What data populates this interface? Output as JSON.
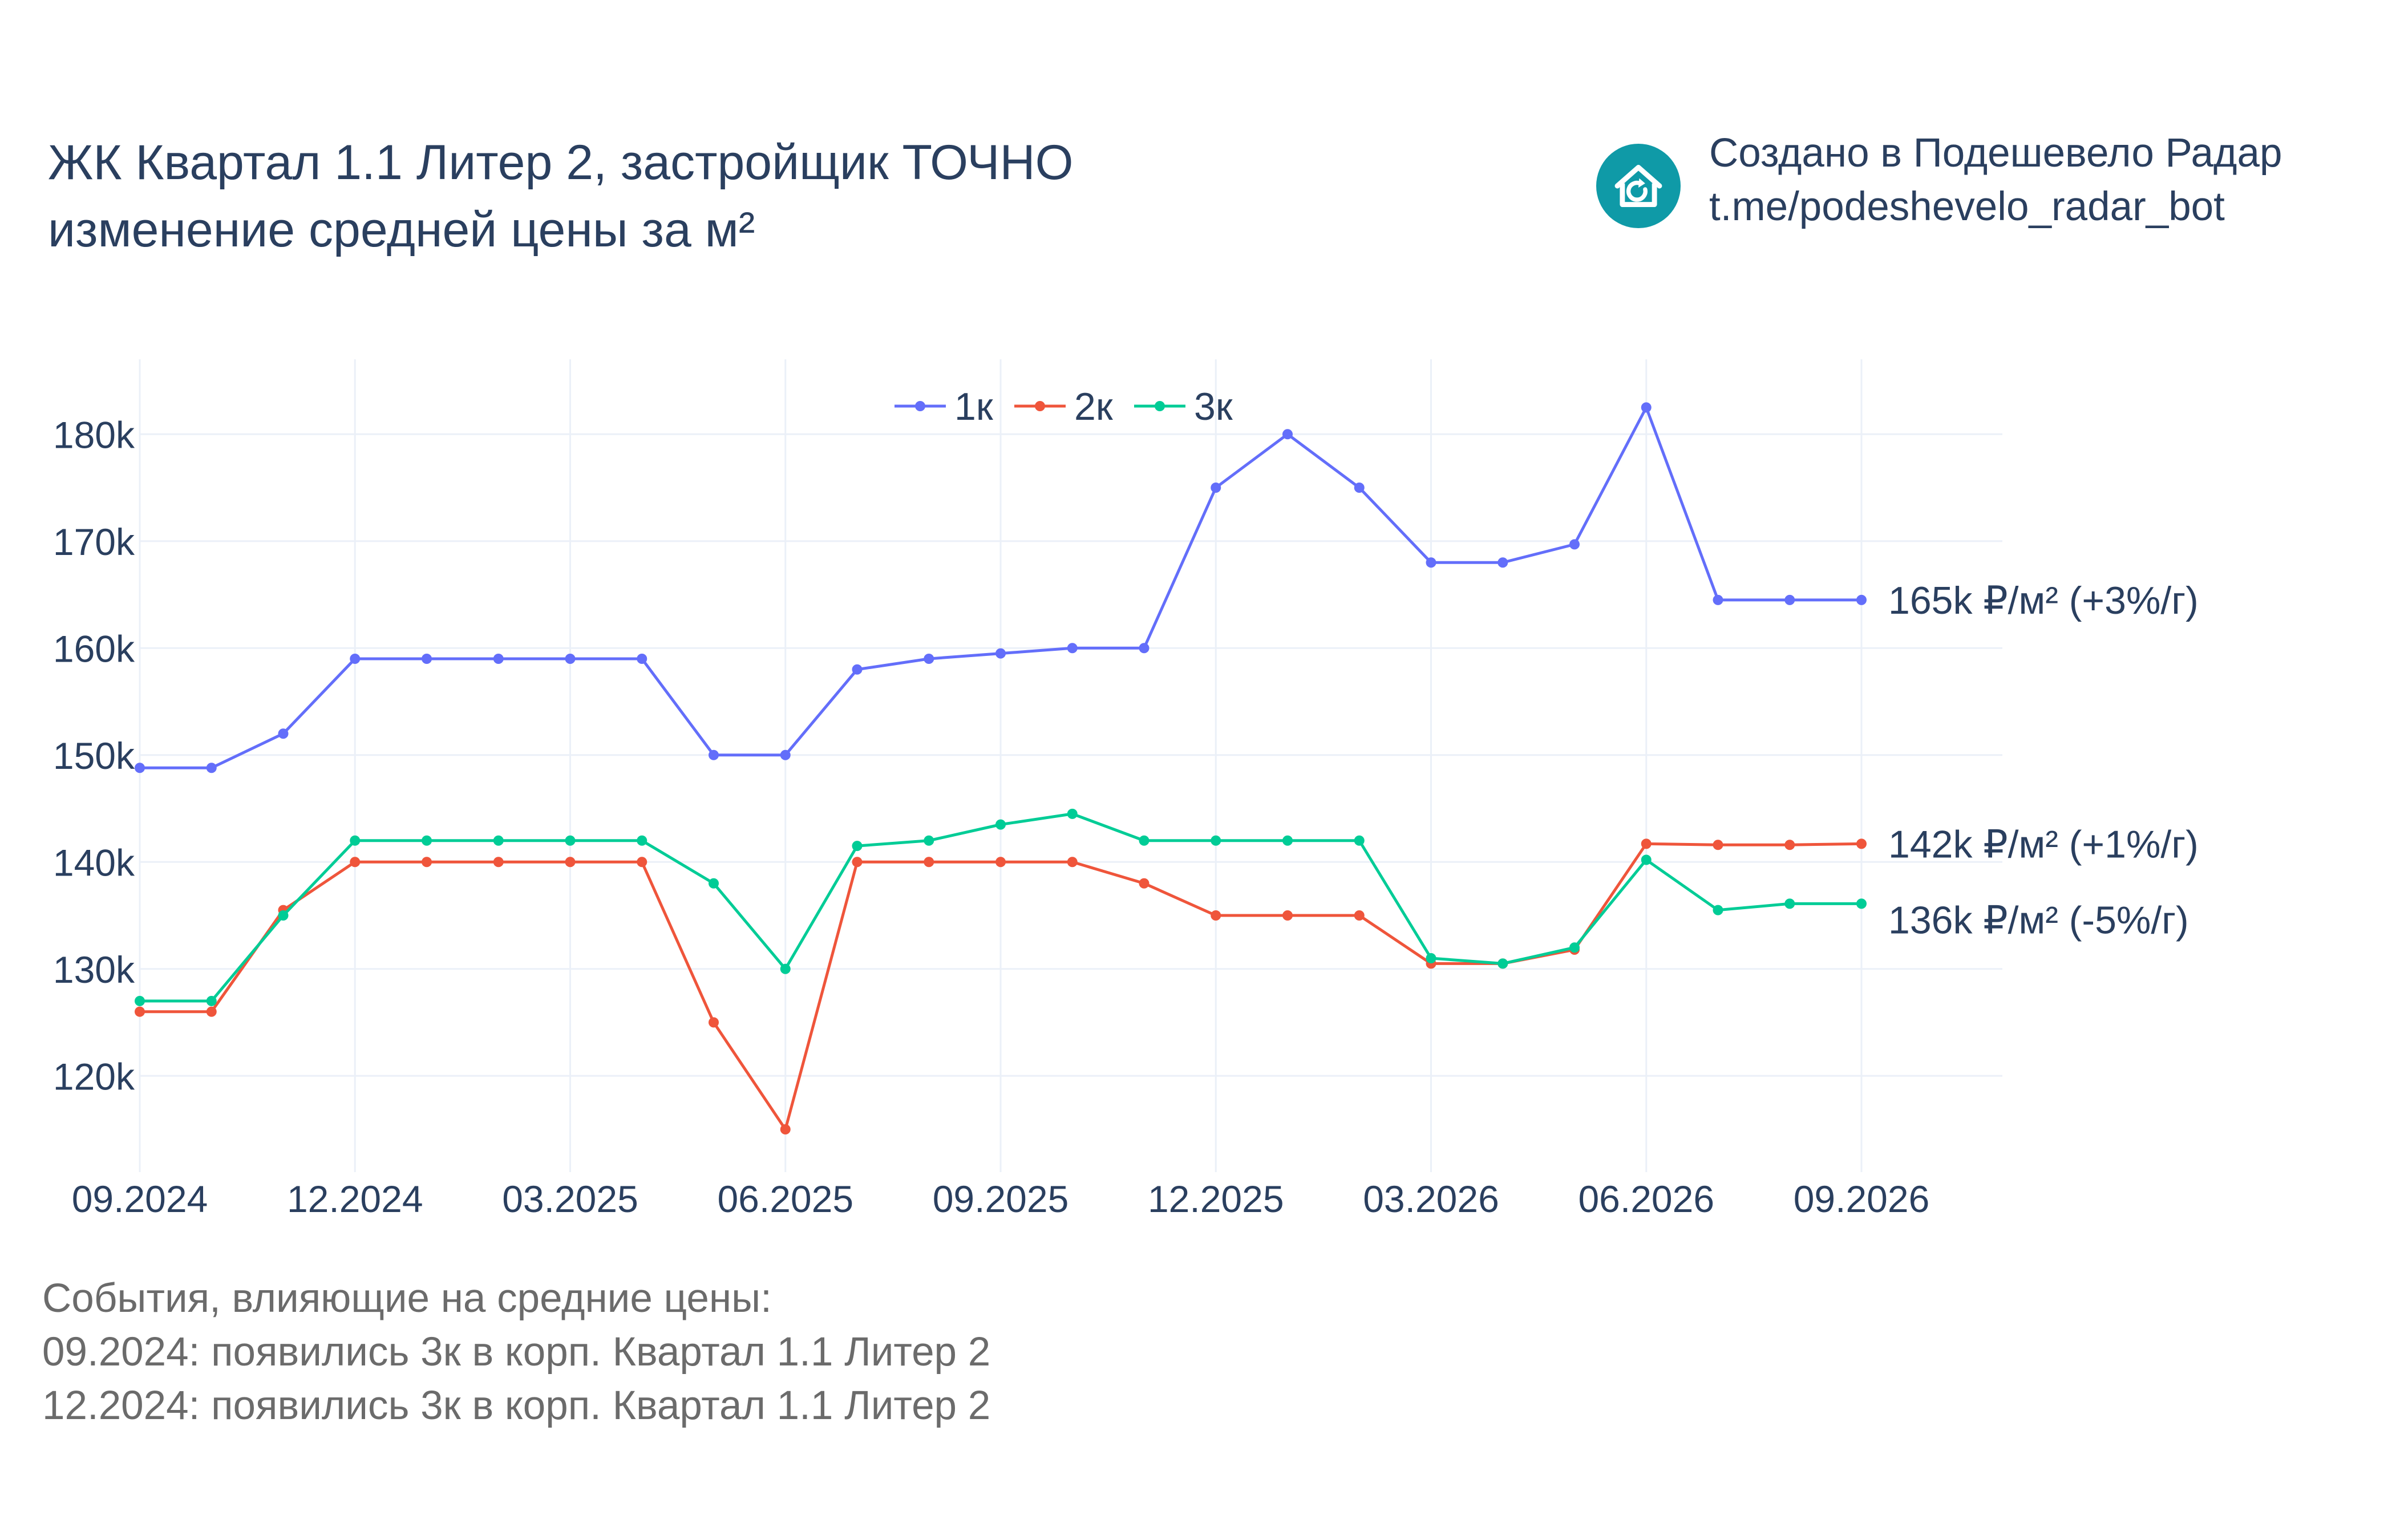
{
  "header": {
    "title_line1": "ЖК Квартал 1.1 Литер 2, застройщик ТОЧНО",
    "title_line2": "изменение средней цены за м²",
    "credit_line1": "Создано в Подешевело Радар",
    "credit_line2": "t.me/podeshevelo_radar_bot",
    "logo_icon": "house-refresh-icon"
  },
  "chart_data": {
    "type": "line",
    "x": [
      "09.2024",
      "10.2024",
      "11.2024",
      "12.2024",
      "01.2025",
      "02.2025",
      "03.2025",
      "04.2025",
      "05.2025",
      "06.2025",
      "07.2025",
      "08.2025",
      "09.2025",
      "10.2025",
      "11.2025",
      "12.2025",
      "01.2026",
      "02.2026",
      "03.2026",
      "04.2026",
      "05.2026",
      "06.2026",
      "07.2026",
      "08.2026",
      "09.2026"
    ],
    "x_ticks": [
      "09.2024",
      "12.2024",
      "03.2025",
      "06.2025",
      "09.2025",
      "12.2025",
      "03.2026",
      "06.2026",
      "09.2026"
    ],
    "y_ticks": [
      "120k",
      "130k",
      "140k",
      "150k",
      "160k",
      "170k",
      "180k"
    ],
    "ylim": [
      111000,
      187000
    ],
    "grid": true,
    "legend_position": "top-center",
    "series": [
      {
        "name": "1к",
        "color": "#636efa",
        "values": [
          148800,
          148800,
          152000,
          159000,
          159000,
          159000,
          159000,
          159000,
          150000,
          150000,
          158000,
          159000,
          159500,
          160000,
          160000,
          175000,
          180000,
          175000,
          168000,
          168000,
          169700,
          182500,
          164500,
          164500,
          164500
        ],
        "end_label": "165k ₽/м² (+3%/г)"
      },
      {
        "name": "2к",
        "color": "#ef553b",
        "values": [
          126000,
          126000,
          135500,
          140000,
          140000,
          140000,
          140000,
          140000,
          125000,
          115000,
          140000,
          140000,
          140000,
          140000,
          138000,
          135000,
          135000,
          135000,
          130500,
          130500,
          131800,
          141700,
          141600,
          141600,
          141700
        ],
        "end_label": "142k ₽/м² (+1%/г)"
      },
      {
        "name": "3к",
        "color": "#00cc96",
        "values": [
          127000,
          127000,
          135000,
          142000,
          142000,
          142000,
          142000,
          142000,
          138000,
          130000,
          141500,
          142000,
          143500,
          144500,
          142000,
          142000,
          142000,
          142000,
          131000,
          130500,
          132000,
          140200,
          135500,
          136100,
          136100
        ],
        "end_label": "136k ₽/м² (-5%/г)"
      }
    ]
  },
  "events": {
    "heading": "События, влияющие на средние цены:",
    "items": [
      "09.2024: появились 3к в корп. Квартал 1.1 Литер 2",
      "12.2024: появились 3к в корп. Квартал 1.1 Литер 2"
    ]
  }
}
